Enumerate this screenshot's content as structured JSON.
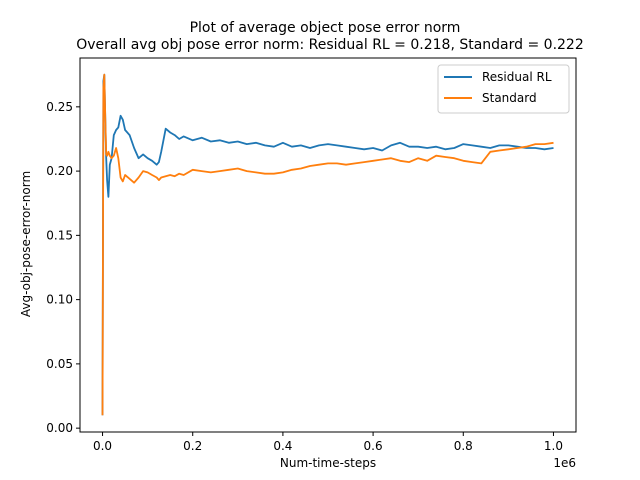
{
  "chart_data": {
    "type": "line",
    "title": "Plot of average object pose error norm",
    "subtitle": "Overall avg obj pose error norm: Residual RL = 0.218, Standard = 0.222",
    "xlabel": "Num-time-steps",
    "ylabel": "Avg-obj-pose-error-norm",
    "x_offset_label": "1e6",
    "xlim": [
      -0.05,
      1.05
    ],
    "ylim": [
      -0.003,
      0.288
    ],
    "x_ticks": [
      0.0,
      0.2,
      0.4,
      0.6,
      0.8,
      1.0
    ],
    "x_tick_labels": [
      "0.0",
      "0.2",
      "0.4",
      "0.6",
      "0.8",
      "1.0"
    ],
    "y_ticks": [
      0.0,
      0.05,
      0.1,
      0.15,
      0.2,
      0.25
    ],
    "y_tick_labels": [
      "0.00",
      "0.05",
      "0.10",
      "0.15",
      "0.20",
      "0.25"
    ],
    "grid": false,
    "legend_position": "top-right",
    "series": [
      {
        "name": "Residual RL",
        "color": "#1f77b4",
        "x": [
          0.0,
          0.002,
          0.004,
          0.006,
          0.008,
          0.01,
          0.013,
          0.016,
          0.02,
          0.025,
          0.03,
          0.035,
          0.04,
          0.045,
          0.05,
          0.06,
          0.07,
          0.08,
          0.09,
          0.1,
          0.11,
          0.12,
          0.125,
          0.13,
          0.14,
          0.15,
          0.16,
          0.17,
          0.18,
          0.2,
          0.22,
          0.24,
          0.26,
          0.28,
          0.3,
          0.32,
          0.34,
          0.36,
          0.38,
          0.4,
          0.42,
          0.44,
          0.46,
          0.48,
          0.5,
          0.52,
          0.54,
          0.56,
          0.58,
          0.6,
          0.62,
          0.64,
          0.66,
          0.68,
          0.7,
          0.72,
          0.74,
          0.76,
          0.78,
          0.8,
          0.82,
          0.84,
          0.86,
          0.88,
          0.9,
          0.92,
          0.94,
          0.96,
          0.98,
          1.0
        ],
        "y": [
          0.01,
          0.27,
          0.275,
          0.24,
          0.21,
          0.193,
          0.18,
          0.205,
          0.21,
          0.228,
          0.232,
          0.234,
          0.243,
          0.24,
          0.232,
          0.228,
          0.218,
          0.21,
          0.213,
          0.21,
          0.208,
          0.205,
          0.207,
          0.215,
          0.233,
          0.23,
          0.228,
          0.225,
          0.227,
          0.224,
          0.226,
          0.223,
          0.224,
          0.222,
          0.223,
          0.221,
          0.222,
          0.22,
          0.219,
          0.222,
          0.219,
          0.22,
          0.218,
          0.22,
          0.221,
          0.22,
          0.219,
          0.218,
          0.217,
          0.218,
          0.216,
          0.22,
          0.222,
          0.219,
          0.219,
          0.218,
          0.219,
          0.217,
          0.218,
          0.221,
          0.22,
          0.219,
          0.218,
          0.22,
          0.22,
          0.219,
          0.218,
          0.218,
          0.217,
          0.218
        ]
      },
      {
        "name": "Standard",
        "color": "#ff7f0e",
        "x": [
          0.0,
          0.002,
          0.004,
          0.006,
          0.008,
          0.01,
          0.013,
          0.016,
          0.02,
          0.025,
          0.03,
          0.035,
          0.04,
          0.045,
          0.05,
          0.06,
          0.07,
          0.08,
          0.09,
          0.1,
          0.11,
          0.12,
          0.125,
          0.13,
          0.14,
          0.15,
          0.16,
          0.17,
          0.18,
          0.2,
          0.22,
          0.24,
          0.26,
          0.28,
          0.3,
          0.32,
          0.34,
          0.36,
          0.38,
          0.4,
          0.42,
          0.44,
          0.46,
          0.48,
          0.5,
          0.52,
          0.54,
          0.56,
          0.58,
          0.6,
          0.62,
          0.64,
          0.66,
          0.68,
          0.7,
          0.72,
          0.74,
          0.76,
          0.78,
          0.8,
          0.82,
          0.84,
          0.86,
          0.88,
          0.9,
          0.92,
          0.94,
          0.96,
          0.98,
          1.0
        ],
        "y": [
          0.01,
          0.265,
          0.275,
          0.24,
          0.213,
          0.212,
          0.215,
          0.212,
          0.21,
          0.212,
          0.218,
          0.21,
          0.195,
          0.192,
          0.197,
          0.194,
          0.191,
          0.195,
          0.2,
          0.199,
          0.197,
          0.195,
          0.193,
          0.195,
          0.196,
          0.197,
          0.196,
          0.198,
          0.197,
          0.201,
          0.2,
          0.199,
          0.2,
          0.201,
          0.202,
          0.2,
          0.199,
          0.198,
          0.198,
          0.199,
          0.201,
          0.202,
          0.204,
          0.205,
          0.206,
          0.206,
          0.205,
          0.206,
          0.207,
          0.208,
          0.209,
          0.21,
          0.208,
          0.207,
          0.21,
          0.208,
          0.212,
          0.211,
          0.21,
          0.208,
          0.207,
          0.206,
          0.215,
          0.216,
          0.217,
          0.218,
          0.219,
          0.221,
          0.221,
          0.222
        ]
      }
    ]
  }
}
